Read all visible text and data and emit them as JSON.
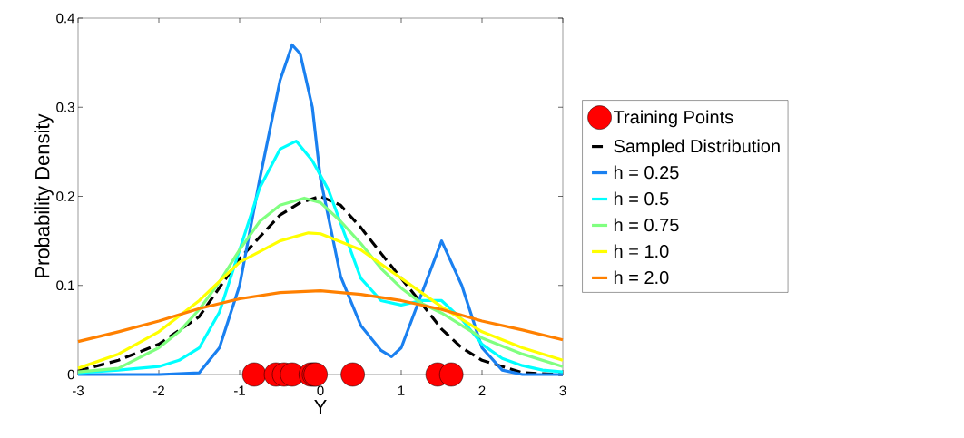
{
  "chart_data": {
    "type": "line",
    "xlabel": "Y",
    "ylabel": "Probability Density",
    "xlim": [
      -3,
      3
    ],
    "ylim": [
      0,
      0.4
    ],
    "xticks": [
      -3,
      -2,
      -1,
      0,
      1,
      2,
      3
    ],
    "yticks": [
      0,
      0.1,
      0.2,
      0.3,
      0.4
    ],
    "grid": false,
    "legend": "right",
    "marker": "none",
    "series": [
      {
        "name": "Training Points",
        "type": "scatter",
        "marker": "circle",
        "color": "#ff0000",
        "x": [
          -0.82,
          -0.55,
          -0.45,
          -0.35,
          -0.12,
          -0.08,
          -0.06,
          0.4,
          1.45,
          1.62
        ],
        "values": [
          0,
          0,
          0,
          0,
          0,
          0,
          0,
          0,
          0,
          0
        ]
      },
      {
        "name": "Sampled Distribution",
        "line_style": "dashed",
        "color": "#000000",
        "x": [
          -3,
          -2.5,
          -2,
          -1.5,
          -1,
          -0.5,
          -0.25,
          0,
          0.25,
          0.5,
          0.75,
          1,
          1.25,
          1.5,
          1.75,
          2,
          2.5,
          3
        ],
        "values": [
          0.004,
          0.016,
          0.034,
          0.065,
          0.13,
          0.179,
          0.193,
          0.2,
          0.19,
          0.165,
          0.136,
          0.108,
          0.08,
          0.051,
          0.03,
          0.016,
          0.002,
          0
        ]
      },
      {
        "name": "h = 0.25",
        "line_style": "solid",
        "color": "#1a80f0",
        "x": [
          -3,
          -2,
          -1.5,
          -1.25,
          -1,
          -0.75,
          -0.5,
          -0.35,
          -0.25,
          -0.1,
          0,
          0.25,
          0.5,
          0.75,
          0.88,
          1,
          1.25,
          1.5,
          1.75,
          2,
          2.25,
          2.5,
          3
        ],
        "values": [
          0,
          0,
          0.002,
          0.03,
          0.1,
          0.22,
          0.33,
          0.37,
          0.36,
          0.3,
          0.22,
          0.11,
          0.055,
          0.027,
          0.02,
          0.03,
          0.09,
          0.15,
          0.1,
          0.03,
          0.005,
          0,
          0
        ]
      },
      {
        "name": "h = 0.5",
        "line_style": "solid",
        "color": "#00ffff",
        "x": [
          -3,
          -2.5,
          -2,
          -1.75,
          -1.5,
          -1.25,
          -1,
          -0.75,
          -0.5,
          -0.3,
          -0.1,
          0.1,
          0.25,
          0.5,
          0.75,
          1,
          1.25,
          1.5,
          1.75,
          2,
          2.25,
          2.5,
          2.75,
          3
        ],
        "values": [
          0.002,
          0.005,
          0.009,
          0.016,
          0.03,
          0.07,
          0.14,
          0.21,
          0.253,
          0.262,
          0.24,
          0.207,
          0.17,
          0.108,
          0.083,
          0.078,
          0.083,
          0.083,
          0.062,
          0.034,
          0.018,
          0.01,
          0.005,
          0.003
        ]
      },
      {
        "name": "h = 0.75",
        "line_style": "solid",
        "color": "#80ff80",
        "x": [
          -3,
          -2.5,
          -2,
          -1.75,
          -1.5,
          -1.25,
          -1,
          -0.75,
          -0.5,
          -0.2,
          0,
          0.25,
          0.5,
          0.75,
          1,
          1.25,
          1.5,
          1.75,
          2,
          2.5,
          3
        ],
        "values": [
          0.003,
          0.007,
          0.03,
          0.048,
          0.073,
          0.104,
          0.14,
          0.172,
          0.19,
          0.198,
          0.193,
          0.172,
          0.147,
          0.119,
          0.097,
          0.08,
          0.069,
          0.055,
          0.041,
          0.023,
          0.009
        ]
      },
      {
        "name": "h = 1.0",
        "line_style": "solid",
        "color": "#ffff00",
        "x": [
          -3,
          -2.5,
          -2,
          -1.5,
          -1,
          -0.5,
          -0.15,
          0,
          0.5,
          1,
          1.5,
          2,
          2.5,
          3
        ],
        "values": [
          0.007,
          0.023,
          0.048,
          0.083,
          0.126,
          0.15,
          0.159,
          0.158,
          0.14,
          0.108,
          0.076,
          0.048,
          0.03,
          0.016
        ]
      },
      {
        "name": "h = 2.0",
        "line_style": "solid",
        "color": "#ff8000",
        "x": [
          -3,
          -2.5,
          -2,
          -1.5,
          -1,
          -0.5,
          0,
          0.5,
          1,
          1.5,
          2,
          2.5,
          3
        ],
        "values": [
          0.037,
          0.048,
          0.06,
          0.074,
          0.085,
          0.092,
          0.094,
          0.09,
          0.083,
          0.073,
          0.06,
          0.05,
          0.039
        ]
      }
    ]
  }
}
